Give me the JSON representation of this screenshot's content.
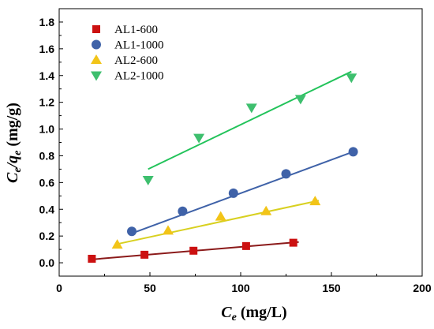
{
  "chart_data": {
    "type": "scatter",
    "xlabel": {
      "var": "C",
      "sub": "e",
      "unit": " (mg/L)"
    },
    "ylabel": {
      "var1": "C",
      "sub1": "e",
      "sep": "/",
      "var2": "q",
      "sub2": "e",
      "unit": " (mg/g)"
    },
    "xlim": [
      0,
      200
    ],
    "ylim": [
      -0.1,
      1.9
    ],
    "xticks": [
      0,
      50,
      100,
      150,
      200
    ],
    "yticks": [
      0.0,
      0.2,
      0.4,
      0.6,
      0.8,
      1.0,
      1.2,
      1.4,
      1.6,
      1.8
    ],
    "ytick_labels": [
      "0.0",
      "0.2",
      "0.4",
      "0.6",
      "0.8",
      "1.0",
      "1.2",
      "1.4",
      "1.6",
      "1.8"
    ],
    "grid": false,
    "legend": "top-left",
    "series": [
      {
        "name": "AL1-600",
        "marker": "square",
        "color": "#cc1111",
        "line_color": "#8b1a1a",
        "x": [
          18,
          47,
          74,
          103,
          129
        ],
        "y": [
          0.03,
          0.06,
          0.09,
          0.125,
          0.15
        ],
        "fit": {
          "x": [
            18,
            132
          ],
          "y": [
            0.025,
            0.155
          ]
        }
      },
      {
        "name": "AL1-1000",
        "marker": "circle",
        "color": "#3f62a8",
        "line_color": "#3f62a8",
        "x": [
          40,
          68,
          96,
          125,
          162
        ],
        "y": [
          0.235,
          0.385,
          0.52,
          0.665,
          0.83
        ],
        "fit": {
          "x": [
            40,
            162
          ],
          "y": [
            0.22,
            0.83
          ]
        }
      },
      {
        "name": "AL2-600",
        "marker": "triangle-up",
        "color": "#f2c418",
        "line_color": "#d8d020",
        "x": [
          32,
          60,
          89,
          114,
          141
        ],
        "y": [
          0.135,
          0.24,
          0.345,
          0.385,
          0.46
        ],
        "fit": {
          "x": [
            32,
            143
          ],
          "y": [
            0.14,
            0.465
          ]
        }
      },
      {
        "name": "AL2-1000",
        "marker": "triangle-down",
        "color": "#3ebf6e",
        "line_color": "#22c35a",
        "x": [
          49,
          77,
          106,
          133,
          161
        ],
        "y": [
          0.62,
          0.935,
          1.16,
          1.225,
          1.385
        ],
        "fit": {
          "x": [
            49,
            161
          ],
          "y": [
            0.7,
            1.43
          ]
        }
      }
    ]
  }
}
